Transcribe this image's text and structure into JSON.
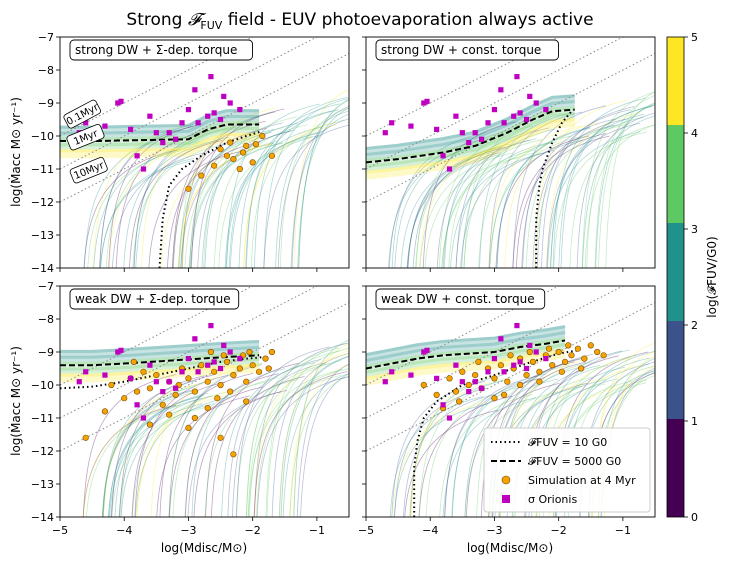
{
  "figure": {
    "title": "Strong 𝓕FUV field - EUV photoevaporation always active",
    "title_parts": {
      "pre": "Strong ",
      "f": "𝓕",
      "sub": "FUV",
      "post": " field - EUV photoevaporation always active"
    },
    "ylabel": "log(Ṁacc M⊙ yr⁻¹)",
    "xlabel": "log(Mdisc/M⊙)"
  },
  "colorbar": {
    "label": "log(𝓕FUV/G0)",
    "ticks": [
      "0",
      "1",
      "2",
      "3",
      "4",
      "5"
    ],
    "colors": [
      "#440154",
      "#3b528b",
      "#21918c",
      "#5ec962",
      "#fde725"
    ],
    "range": [
      0,
      5
    ]
  },
  "legend": {
    "items": [
      {
        "label": "𝓕FUV = 10 G0",
        "style": "dotted"
      },
      {
        "label": "𝓕FUV = 5000 G0",
        "style": "dashed"
      },
      {
        "label": "Simulation at 4 Myr",
        "marker": "circle",
        "color": "#f5a300"
      },
      {
        "label": "σ Orionis",
        "marker": "square",
        "color": "#c000c0"
      }
    ]
  },
  "isochrones": [
    "0.1Myr",
    "1Myr",
    "10Myr"
  ],
  "colors": {
    "sigma_orionis": "#c000c0",
    "simulation": "#f5a300"
  },
  "chart_data": [
    {
      "type": "scatter",
      "panel_title": "strong DW + Σ-dep. torque",
      "xlim": [
        -5,
        -0.5
      ],
      "ylim": [
        -14,
        -7
      ],
      "xticks": [
        -5,
        -4,
        -3,
        -2,
        -1
      ],
      "yticks": [
        -14,
        -13,
        -12,
        -11,
        -10,
        -9,
        -8,
        -7
      ],
      "curve_10G0": [
        [
          -3.45,
          -14
        ],
        [
          -3.4,
          -12.5
        ],
        [
          -3.3,
          -11.5
        ],
        [
          -3.1,
          -11
        ],
        [
          -2.8,
          -10.6
        ],
        [
          -2.4,
          -10.2
        ],
        [
          -2.1,
          -10.0
        ],
        [
          -1.85,
          -9.85
        ]
      ],
      "curve_5000G0": [
        [
          -5,
          -10.15
        ],
        [
          -4.4,
          -10.15
        ],
        [
          -3.6,
          -10.12
        ],
        [
          -3.0,
          -10.1
        ],
        [
          -2.7,
          -9.8
        ],
        [
          -2.4,
          -9.65
        ],
        [
          -1.9,
          -9.65
        ]
      ],
      "sigma_orionis": [
        [
          -4.7,
          -9.9
        ],
        [
          -4.6,
          -9.6
        ],
        [
          -4.1,
          -9.0
        ],
        [
          -4.05,
          -8.95
        ],
        [
          -3.9,
          -9.8
        ],
        [
          -3.6,
          -9.4
        ],
        [
          -3.5,
          -9.9
        ],
        [
          -3.4,
          -10.2
        ],
        [
          -3.2,
          -10.1
        ],
        [
          -3.1,
          -9.6
        ],
        [
          -3.0,
          -9.2
        ],
        [
          -2.9,
          -8.6
        ],
        [
          -2.85,
          -9.6
        ],
        [
          -2.7,
          -9.4
        ],
        [
          -2.65,
          -8.2
        ],
        [
          -2.6,
          -9.3
        ],
        [
          -2.5,
          -9.5
        ],
        [
          -2.45,
          -8.8
        ],
        [
          -2.35,
          -9.0
        ],
        [
          -2.2,
          -9.2
        ],
        [
          -3.8,
          -10.6
        ],
        [
          -3.3,
          -9.9
        ],
        [
          -4.3,
          -9.7
        ],
        [
          -3.7,
          -11.0
        ]
      ],
      "simulation": [
        [
          -1.85,
          -10.0
        ],
        [
          -1.7,
          -10.6
        ],
        [
          -2.1,
          -10.3
        ],
        [
          -2.3,
          -10.7
        ],
        [
          -2.5,
          -10.4
        ],
        [
          -2.2,
          -11.0
        ],
        [
          -2.8,
          -11.2
        ],
        [
          -3.0,
          -11.6
        ],
        [
          -2.4,
          -10.6
        ],
        [
          -2.0,
          -10.8
        ],
        [
          -2.6,
          -10.9
        ],
        [
          -2.15,
          -10.5
        ],
        [
          -2.35,
          -10.2
        ],
        [
          -1.95,
          -10.25
        ]
      ]
    },
    {
      "type": "scatter",
      "panel_title": "strong DW + const. torque",
      "xlim": [
        -5,
        -0.5
      ],
      "ylim": [
        -14,
        -7
      ],
      "xticks": [
        -5,
        -4,
        -3,
        -2,
        -1
      ],
      "yticks": [
        -14,
        -13,
        -12,
        -11,
        -10,
        -9,
        -8,
        -7
      ],
      "curve_10G0": [
        [
          -2.35,
          -14
        ],
        [
          -2.35,
          -12.5
        ],
        [
          -2.3,
          -11.5
        ],
        [
          -2.25,
          -11.0
        ],
        [
          -2.1,
          -10.2
        ],
        [
          -1.95,
          -9.6
        ],
        [
          -1.8,
          -9.25
        ]
      ],
      "curve_5000G0": [
        [
          -5,
          -10.8
        ],
        [
          -4.5,
          -10.7
        ],
        [
          -3.8,
          -10.5
        ],
        [
          -3.3,
          -10.3
        ],
        [
          -2.8,
          -9.9
        ],
        [
          -2.4,
          -9.5
        ],
        [
          -2.1,
          -9.25
        ],
        [
          -1.75,
          -9.2
        ]
      ],
      "sigma_orionis": [
        [
          -4.7,
          -9.9
        ],
        [
          -4.6,
          -9.6
        ],
        [
          -4.1,
          -9.0
        ],
        [
          -4.05,
          -8.95
        ],
        [
          -3.9,
          -9.8
        ],
        [
          -3.6,
          -9.4
        ],
        [
          -3.5,
          -9.9
        ],
        [
          -3.4,
          -10.2
        ],
        [
          -3.2,
          -10.1
        ],
        [
          -3.1,
          -9.6
        ],
        [
          -3.0,
          -9.2
        ],
        [
          -2.9,
          -8.6
        ],
        [
          -2.85,
          -9.6
        ],
        [
          -2.7,
          -9.4
        ],
        [
          -2.65,
          -8.2
        ],
        [
          -2.6,
          -9.3
        ],
        [
          -2.5,
          -9.5
        ],
        [
          -2.45,
          -8.8
        ],
        [
          -2.35,
          -9.0
        ],
        [
          -2.2,
          -9.2
        ],
        [
          -3.8,
          -10.6
        ],
        [
          -3.3,
          -9.9
        ],
        [
          -4.3,
          -9.7
        ],
        [
          -3.7,
          -11.0
        ]
      ],
      "simulation": []
    },
    {
      "type": "scatter",
      "panel_title": "weak DW + Σ-dep. torque",
      "xlim": [
        -5,
        -0.5
      ],
      "ylim": [
        -14,
        -7
      ],
      "xticks": [
        -5,
        -4,
        -3,
        -2,
        -1
      ],
      "yticks": [
        -14,
        -13,
        -12,
        -11,
        -10,
        -9,
        -8,
        -7
      ],
      "curve_10G0": [
        [
          -5,
          -10.1
        ],
        [
          -4.5,
          -10.05
        ],
        [
          -4.0,
          -9.9
        ],
        [
          -3.5,
          -9.7
        ],
        [
          -3.0,
          -9.5
        ],
        [
          -2.5,
          -9.3
        ],
        [
          -2.1,
          -9.2
        ],
        [
          -1.8,
          -9.15
        ]
      ],
      "curve_5000G0": [
        [
          -5,
          -9.4
        ],
        [
          -4.5,
          -9.4
        ],
        [
          -4.0,
          -9.35
        ],
        [
          -3.6,
          -9.3
        ],
        [
          -3.2,
          -9.25
        ],
        [
          -2.8,
          -9.2
        ],
        [
          -2.4,
          -9.15
        ],
        [
          -1.9,
          -9.1
        ]
      ],
      "sigma_orionis": [
        [
          -4.7,
          -9.9
        ],
        [
          -4.6,
          -9.6
        ],
        [
          -4.1,
          -9.0
        ],
        [
          -4.05,
          -8.95
        ],
        [
          -3.9,
          -9.8
        ],
        [
          -3.6,
          -9.4
        ],
        [
          -3.5,
          -9.9
        ],
        [
          -3.4,
          -10.2
        ],
        [
          -3.2,
          -10.1
        ],
        [
          -3.1,
          -9.6
        ],
        [
          -3.0,
          -9.2
        ],
        [
          -2.9,
          -8.6
        ],
        [
          -2.85,
          -9.6
        ],
        [
          -2.7,
          -9.4
        ],
        [
          -2.65,
          -8.2
        ],
        [
          -2.6,
          -9.3
        ],
        [
          -2.5,
          -9.5
        ],
        [
          -2.45,
          -8.8
        ],
        [
          -2.35,
          -9.0
        ],
        [
          -2.2,
          -9.2
        ],
        [
          -3.8,
          -10.6
        ],
        [
          -3.3,
          -9.9
        ],
        [
          -4.3,
          -9.7
        ],
        [
          -3.7,
          -11.0
        ]
      ],
      "simulation": [
        [
          -4.6,
          -11.6
        ],
        [
          -4.3,
          -10.8
        ],
        [
          -4.0,
          -10.4
        ],
        [
          -3.9,
          -9.8
        ],
        [
          -3.8,
          -10.2
        ],
        [
          -3.7,
          -9.6
        ],
        [
          -3.6,
          -10.1
        ],
        [
          -3.5,
          -9.7
        ],
        [
          -3.4,
          -10.6
        ],
        [
          -3.3,
          -9.9
        ],
        [
          -3.2,
          -10.3
        ],
        [
          -3.1,
          -9.5
        ],
        [
          -3.0,
          -9.8
        ],
        [
          -2.9,
          -10.2
        ],
        [
          -2.8,
          -9.4
        ],
        [
          -2.7,
          -9.9
        ],
        [
          -2.6,
          -9.6
        ],
        [
          -2.5,
          -10.0
        ],
        [
          -2.4,
          -9.3
        ],
        [
          -2.3,
          -9.7
        ],
        [
          -2.2,
          -9.5
        ],
        [
          -2.1,
          -9.9
        ],
        [
          -2.0,
          -9.4
        ],
        [
          -1.9,
          -9.6
        ],
        [
          -1.8,
          -9.2
        ],
        [
          -1.7,
          -9.0
        ],
        [
          -2.9,
          -11.0
        ],
        [
          -2.5,
          -11.6
        ],
        [
          -2.3,
          -12.1
        ],
        [
          -2.7,
          -10.7
        ],
        [
          -3.0,
          -11.3
        ],
        [
          -2.1,
          -10.5
        ],
        [
          -3.3,
          -10.9
        ],
        [
          -3.6,
          -11.2
        ],
        [
          -2.45,
          -9.1
        ],
        [
          -2.65,
          -9.0
        ],
        [
          -3.85,
          -9.3
        ],
        [
          -2.15,
          -9.1
        ],
        [
          -4.2,
          -10.0
        ],
        [
          -2.55,
          -10.4
        ],
        [
          -3.15,
          -10.0
        ],
        [
          -2.35,
          -10.2
        ],
        [
          -2.05,
          -9.0
        ],
        [
          -1.75,
          -9.5
        ]
      ]
    },
    {
      "type": "scatter",
      "panel_title": "weak DW + const. torque",
      "xlim": [
        -5,
        -0.5
      ],
      "ylim": [
        -14,
        -7
      ],
      "xticks": [
        -5,
        -4,
        -3,
        -2,
        -1
      ],
      "yticks": [
        -14,
        -13,
        -12,
        -11,
        -10,
        -9,
        -8,
        -7
      ],
      "curve_10G0": [
        [
          -4.25,
          -14
        ],
        [
          -4.25,
          -12.5
        ],
        [
          -4.2,
          -11.7
        ],
        [
          -4.1,
          -11.0
        ],
        [
          -3.9,
          -10.5
        ],
        [
          -3.5,
          -10.0
        ],
        [
          -3.0,
          -9.7
        ],
        [
          -2.5,
          -9.35
        ],
        [
          -2.0,
          -9.05
        ],
        [
          -1.7,
          -8.95
        ]
      ],
      "curve_5000G0": [
        [
          -5,
          -9.5
        ],
        [
          -4.6,
          -9.35
        ],
        [
          -4.2,
          -9.2
        ],
        [
          -3.8,
          -9.1
        ],
        [
          -3.4,
          -9.05
        ],
        [
          -3.0,
          -9.0
        ],
        [
          -2.6,
          -8.85
        ],
        [
          -2.2,
          -8.75
        ],
        [
          -1.9,
          -8.65
        ]
      ],
      "sigma_orionis": [
        [
          -4.7,
          -9.9
        ],
        [
          -4.6,
          -9.6
        ],
        [
          -4.1,
          -9.0
        ],
        [
          -4.05,
          -8.95
        ],
        [
          -3.9,
          -9.8
        ],
        [
          -3.6,
          -9.4
        ],
        [
          -3.5,
          -9.9
        ],
        [
          -3.4,
          -10.2
        ],
        [
          -3.2,
          -10.1
        ],
        [
          -3.1,
          -9.6
        ],
        [
          -3.0,
          -9.2
        ],
        [
          -2.9,
          -8.6
        ],
        [
          -2.85,
          -9.6
        ],
        [
          -2.7,
          -9.4
        ],
        [
          -2.65,
          -8.2
        ],
        [
          -2.6,
          -9.3
        ],
        [
          -2.5,
          -9.5
        ],
        [
          -2.45,
          -8.8
        ],
        [
          -2.35,
          -9.0
        ],
        [
          -2.2,
          -9.2
        ],
        [
          -3.8,
          -10.6
        ],
        [
          -3.3,
          -9.9
        ],
        [
          -4.3,
          -9.7
        ],
        [
          -3.7,
          -11.0
        ]
      ],
      "simulation": [
        [
          -4.1,
          -10.0
        ],
        [
          -3.9,
          -10.3
        ],
        [
          -3.7,
          -9.8
        ],
        [
          -3.6,
          -10.2
        ],
        [
          -3.5,
          -9.6
        ],
        [
          -3.4,
          -10.0
        ],
        [
          -3.3,
          -9.7
        ],
        [
          -3.2,
          -10.1
        ],
        [
          -3.1,
          -9.5
        ],
        [
          -3.0,
          -9.8
        ],
        [
          -2.9,
          -9.4
        ],
        [
          -2.8,
          -9.9
        ],
        [
          -2.7,
          -9.5
        ],
        [
          -2.6,
          -9.2
        ],
        [
          -2.5,
          -9.7
        ],
        [
          -2.4,
          -9.3
        ],
        [
          -2.3,
          -9.6
        ],
        [
          -2.2,
          -9.1
        ],
        [
          -2.1,
          -9.4
        ],
        [
          -2.0,
          -9.0
        ],
        [
          -1.9,
          -9.3
        ],
        [
          -1.8,
          -9.1
        ],
        [
          -1.7,
          -8.9
        ],
        [
          -1.6,
          -9.2
        ],
        [
          -1.5,
          -8.8
        ],
        [
          -1.4,
          -9.0
        ],
        [
          -1.3,
          -9.1
        ],
        [
          -3.8,
          -10.7
        ],
        [
          -3.0,
          -10.4
        ],
        [
          -2.6,
          -10.0
        ],
        [
          -2.3,
          -9.9
        ],
        [
          -1.95,
          -9.6
        ],
        [
          -2.75,
          -9.1
        ],
        [
          -3.25,
          -9.3
        ],
        [
          -2.15,
          -8.9
        ],
        [
          -1.65,
          -9.5
        ],
        [
          -2.45,
          -9.0
        ],
        [
          -3.55,
          -10.5
        ],
        [
          -2.85,
          -10.3
        ],
        [
          -1.85,
          -8.8
        ]
      ]
    }
  ]
}
